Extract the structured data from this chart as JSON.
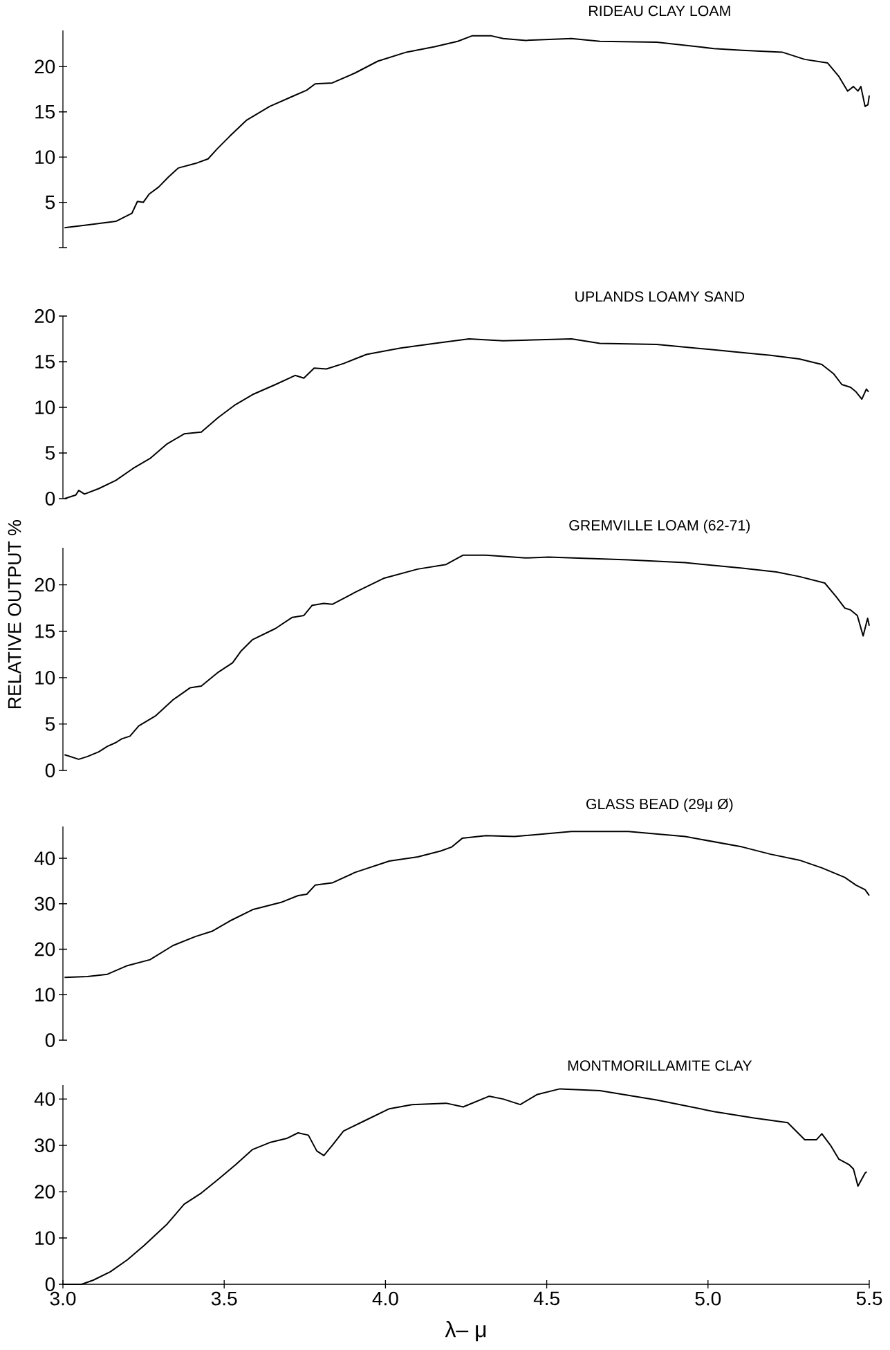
{
  "chart_data": [
    {
      "type": "line",
      "title": "RIDEAU CLAY LOAM",
      "xlim": [
        3.0,
        5.5
      ],
      "ylim": [
        0,
        24
      ],
      "yticks": [
        {
          "value": 0,
          "label": null
        },
        5,
        10,
        15,
        20
      ],
      "tick_labels": "y",
      "series": [
        {
          "color": "#000000",
          "x": [
            3.005,
            3.076,
            3.164,
            3.214,
            3.231,
            3.249,
            3.267,
            3.297,
            3.327,
            3.358,
            3.411,
            3.45,
            3.478,
            3.517,
            3.57,
            3.641,
            3.711,
            3.756,
            3.782,
            3.835,
            3.906,
            3.976,
            4.065,
            4.153,
            4.224,
            4.268,
            4.329,
            4.365,
            4.435,
            4.577,
            4.665,
            4.841,
            5.018,
            5.106,
            5.23,
            5.3,
            5.371,
            5.406,
            5.433,
            5.451,
            5.465,
            5.474,
            5.487,
            5.496,
            5.5
          ],
          "values": [
            2.2,
            2.5,
            2.9,
            3.8,
            5.1,
            5.0,
            5.9,
            6.7,
            7.8,
            8.8,
            9.3,
            9.8,
            10.9,
            12.3,
            14.1,
            15.6,
            16.7,
            17.4,
            18.1,
            18.2,
            19.3,
            20.6,
            21.6,
            22.2,
            22.8,
            23.4,
            23.4,
            23.1,
            22.9,
            23.1,
            22.8,
            22.7,
            22.0,
            21.8,
            21.6,
            20.8,
            20.4,
            18.9,
            17.3,
            17.8,
            17.3,
            17.8,
            15.6,
            15.8,
            16.8
          ]
        }
      ]
    },
    {
      "type": "line",
      "title": "UPLANDS LOAMY SAND",
      "xlim": [
        3.0,
        5.5
      ],
      "ylim": [
        0,
        20
      ],
      "yticks": [
        0,
        5,
        10,
        15,
        20
      ],
      "tick_labels": "y",
      "series": [
        {
          "color": "#000000",
          "x": [
            3.005,
            3.04,
            3.049,
            3.067,
            3.111,
            3.164,
            3.217,
            3.27,
            3.323,
            3.376,
            3.429,
            3.482,
            3.535,
            3.588,
            3.659,
            3.72,
            3.747,
            3.779,
            3.817,
            3.87,
            3.941,
            4.047,
            4.153,
            4.259,
            4.365,
            4.577,
            4.665,
            4.841,
            5.018,
            5.194,
            5.283,
            5.353,
            5.389,
            5.415,
            5.442,
            5.459,
            5.477,
            5.491,
            5.498
          ],
          "values": [
            0.0,
            0.4,
            0.9,
            0.5,
            1.1,
            2.0,
            3.3,
            4.4,
            6.0,
            7.1,
            7.3,
            8.9,
            10.3,
            11.4,
            12.5,
            13.5,
            13.2,
            14.3,
            14.2,
            14.8,
            15.8,
            16.5,
            17.0,
            17.5,
            17.3,
            17.5,
            17.0,
            16.9,
            16.3,
            15.7,
            15.3,
            14.7,
            13.7,
            12.5,
            12.2,
            11.7,
            10.9,
            12.0,
            11.7
          ]
        }
      ]
    },
    {
      "type": "line",
      "title": "GREMVILLE LOAM (62-71)",
      "ylabel": "RELATIVE OUTPUT %",
      "xlim": [
        3.0,
        5.5
      ],
      "ylim": [
        0,
        24
      ],
      "yticks": [
        0,
        5,
        10,
        15,
        20
      ],
      "tick_labels": "y",
      "series": [
        {
          "color": "#000000",
          "x": [
            3.005,
            3.049,
            3.076,
            3.111,
            3.138,
            3.164,
            3.182,
            3.208,
            3.235,
            3.288,
            3.341,
            3.394,
            3.429,
            3.482,
            3.526,
            3.553,
            3.588,
            3.659,
            3.711,
            3.747,
            3.773,
            3.809,
            3.835,
            3.906,
            3.994,
            4.1,
            4.188,
            4.241,
            4.312,
            4.435,
            4.506,
            4.753,
            4.929,
            5.106,
            5.212,
            5.283,
            5.362,
            5.398,
            5.424,
            5.442,
            5.463,
            5.481,
            5.495,
            5.5
          ],
          "values": [
            1.7,
            1.2,
            1.5,
            2.0,
            2.6,
            3.0,
            3.4,
            3.7,
            4.8,
            5.9,
            7.6,
            8.9,
            9.1,
            10.6,
            11.6,
            12.9,
            14.1,
            15.3,
            16.5,
            16.7,
            17.8,
            18.0,
            17.9,
            19.2,
            20.7,
            21.7,
            22.2,
            23.2,
            23.2,
            22.9,
            23.0,
            22.7,
            22.4,
            21.8,
            21.4,
            20.9,
            20.2,
            18.7,
            17.5,
            17.3,
            16.7,
            14.5,
            16.4,
            15.6
          ]
        }
      ]
    },
    {
      "type": "line",
      "title": "GLASS BEAD (29μ Ø)",
      "xlim": [
        3.0,
        5.5
      ],
      "ylim": [
        0,
        47
      ],
      "yticks": [
        0,
        10,
        20,
        30,
        40
      ],
      "tick_labels": "y",
      "series": [
        {
          "color": "#000000",
          "x": [
            3.005,
            3.076,
            3.138,
            3.2,
            3.27,
            3.341,
            3.411,
            3.464,
            3.517,
            3.588,
            3.676,
            3.729,
            3.756,
            3.782,
            3.835,
            3.906,
            4.012,
            4.1,
            4.171,
            4.206,
            4.238,
            4.312,
            4.4,
            4.577,
            4.753,
            4.929,
            5.106,
            5.194,
            5.283,
            5.353,
            5.424,
            5.459,
            5.487,
            5.5
          ],
          "values": [
            13.8,
            14.0,
            14.5,
            16.4,
            17.7,
            20.8,
            22.8,
            24.0,
            26.2,
            28.7,
            30.3,
            31.8,
            32.1,
            34.1,
            34.6,
            36.9,
            39.4,
            40.3,
            41.6,
            42.5,
            44.4,
            45.0,
            44.8,
            45.9,
            45.9,
            44.8,
            42.5,
            40.9,
            39.6,
            37.9,
            35.8,
            34.1,
            33.1,
            31.8
          ]
        }
      ]
    },
    {
      "type": "line",
      "title": "MONTMORILLAMITE CLAY",
      "xlabel": "λ– μ",
      "xlim": [
        3.0,
        5.5
      ],
      "ylim": [
        0,
        43
      ],
      "xticks": [
        {
          "value": 3.0,
          "label": "3.0"
        },
        3.5,
        {
          "value": 4.0,
          "label": "4.0"
        },
        4.5,
        {
          "value": 5.0,
          "label": "5.0"
        },
        5.5
      ],
      "yticks": [
        0,
        10,
        20,
        30,
        40
      ],
      "series": [
        {
          "color": "#000000",
          "x": [
            3.0,
            3.058,
            3.094,
            3.147,
            3.2,
            3.252,
            3.323,
            3.376,
            3.429,
            3.482,
            3.535,
            3.588,
            3.641,
            3.694,
            3.729,
            3.761,
            3.787,
            3.809,
            3.835,
            3.87,
            3.941,
            4.012,
            4.082,
            4.188,
            4.241,
            4.321,
            4.365,
            4.418,
            4.471,
            4.541,
            4.665,
            4.841,
            5.018,
            5.142,
            5.247,
            5.3,
            5.336,
            5.353,
            5.38,
            5.406,
            5.438,
            5.451,
            5.465,
            5.487,
            5.492
          ],
          "values": [
            0.0,
            0.0,
            0.9,
            2.7,
            5.3,
            8.4,
            13.0,
            17.3,
            19.7,
            22.7,
            25.8,
            29.1,
            30.6,
            31.5,
            32.7,
            32.2,
            28.8,
            27.8,
            30.0,
            33.1,
            35.5,
            37.9,
            38.8,
            39.1,
            38.3,
            40.6,
            40.0,
            38.8,
            41.0,
            42.2,
            41.8,
            39.8,
            37.3,
            35.9,
            34.9,
            31.2,
            31.2,
            32.5,
            30.0,
            27.0,
            25.8,
            24.9,
            21.2,
            24.0,
            24.3
          ]
        }
      ]
    }
  ]
}
